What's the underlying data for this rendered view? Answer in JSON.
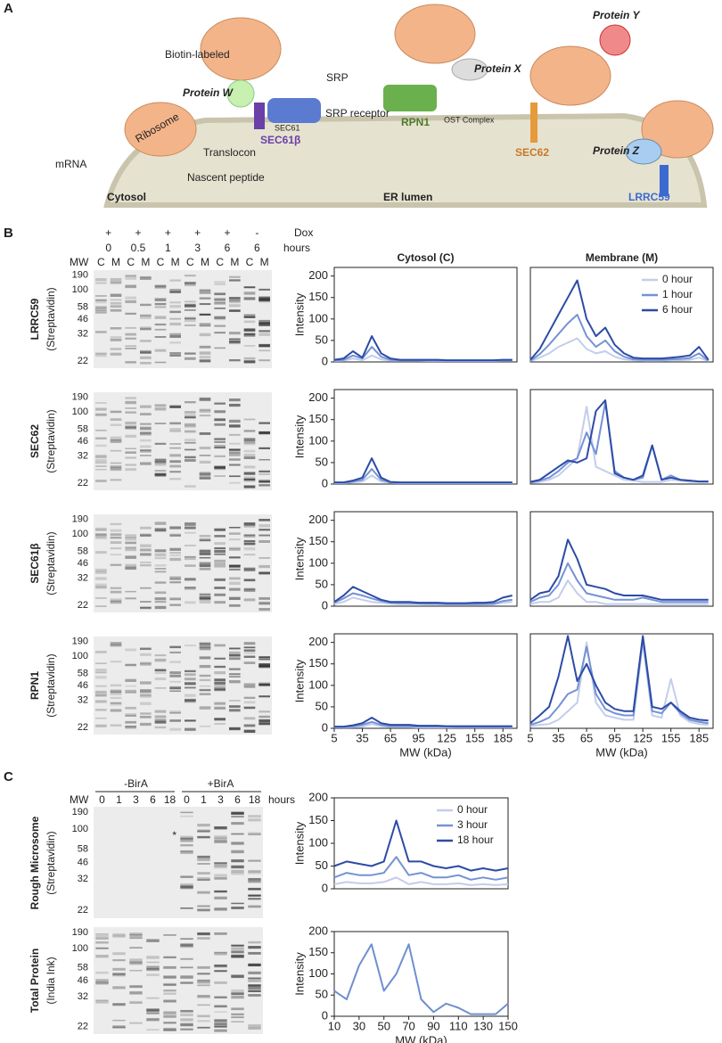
{
  "panel_a": {
    "label": "A",
    "texts": {
      "biotin": "Biotin-labeled",
      "srp": "SRP",
      "protein_w": "Protein W",
      "sec61": "SEC61",
      "sec61b": "SEC61β",
      "srp_receptor": "SRP receptor",
      "ribosome": "Ribosome",
      "translocon": "Translocon",
      "mrna": "mRNA",
      "nascent": "Nascent peptide",
      "cytosol": "Cytosol",
      "er_lumen": "ER lumen",
      "rpn1": "RPN1",
      "ost": "OST Complex",
      "protein_x": "Protein X",
      "sec62": "SEC62",
      "protein_y": "Protein Y",
      "protein_z": "Protein Z",
      "lrrc59": "LRRC59"
    }
  },
  "panel_b": {
    "label": "B",
    "dox": "Dox",
    "signs": [
      "+",
      "+",
      "+",
      "+",
      "+",
      "-"
    ],
    "hours_label": "hours",
    "hours": [
      "0",
      "0.5",
      "1",
      "3",
      "6",
      "6"
    ],
    "mw": "MW",
    "lanes": [
      "C",
      "M",
      "C",
      "M",
      "C",
      "M",
      "C",
      "M",
      "C",
      "M",
      "C",
      "M"
    ],
    "markers": [
      "190",
      "100",
      "58",
      "46",
      "32",
      "22"
    ],
    "blots": [
      {
        "name": "LRRC59",
        "stain": "(Streptavidin)"
      },
      {
        "name": "SEC62",
        "stain": "(Streptavidin)"
      },
      {
        "name": "SEC61β",
        "stain": "(Streptavidin)"
      },
      {
        "name": "RPN1",
        "stain": "(Streptavidin)"
      }
    ]
  },
  "panel_c": {
    "label": "C",
    "minus": "-BirA",
    "plus": "+BirA",
    "mw": "MW",
    "hours_label": "hours",
    "lanes": [
      "0",
      "1",
      "3",
      "6",
      "18",
      "0",
      "1",
      "3",
      "6",
      "18"
    ],
    "markers": [
      "190",
      "100",
      "58",
      "46",
      "32",
      "22"
    ],
    "star": "*",
    "blots": [
      {
        "name": "Rough Microsome",
        "stain": "(Streptavidin)"
      },
      {
        "name": "Total Protein",
        "stain": "(India Ink)"
      }
    ]
  },
  "chart_data": [
    {
      "type": "line",
      "title": "Cytosol (C)",
      "ylabel": "Intensity",
      "x": [
        5,
        15,
        25,
        35,
        45,
        55,
        65,
        75,
        85,
        95,
        105,
        115,
        125,
        135,
        145,
        155,
        165,
        175,
        185,
        195
      ],
      "xlim": [
        5,
        200
      ],
      "ylim": [
        0,
        220
      ],
      "yticks": [
        0,
        50,
        100,
        150,
        200
      ],
      "series": [
        {
          "color": "#c3cdec",
          "values": [
            2,
            3,
            8,
            4,
            15,
            6,
            3,
            3,
            3,
            3,
            2,
            2,
            2,
            2,
            2,
            2,
            2,
            2,
            3,
            3
          ]
        },
        {
          "color": "#7592d4",
          "values": [
            3,
            5,
            15,
            8,
            35,
            12,
            5,
            4,
            4,
            4,
            3,
            3,
            3,
            3,
            3,
            3,
            3,
            3,
            4,
            4
          ]
        },
        {
          "color": "#2c4ba6",
          "values": [
            5,
            8,
            25,
            10,
            60,
            20,
            8,
            5,
            5,
            5,
            5,
            5,
            4,
            4,
            4,
            4,
            4,
            4,
            5,
            5
          ]
        }
      ]
    },
    {
      "type": "line",
      "title": "Membrane (M)",
      "x": [
        5,
        15,
        25,
        35,
        45,
        55,
        65,
        75,
        85,
        95,
        105,
        115,
        125,
        135,
        145,
        155,
        165,
        175,
        185,
        195
      ],
      "xlim": [
        5,
        200
      ],
      "ylim": [
        0,
        220
      ],
      "legend": "upper right",
      "series": [
        {
          "name": "0 hour",
          "color": "#c3cdec",
          "values": [
            2,
            10,
            20,
            35,
            45,
            55,
            30,
            20,
            25,
            12,
            6,
            4,
            3,
            3,
            3,
            4,
            4,
            5,
            10,
            2
          ]
        },
        {
          "name": "1 hour",
          "color": "#7592d4",
          "values": [
            3,
            18,
            40,
            65,
            90,
            110,
            60,
            35,
            50,
            25,
            12,
            6,
            5,
            5,
            5,
            6,
            7,
            9,
            20,
            3
          ]
        },
        {
          "name": "6 hour",
          "color": "#2c4ba6",
          "values": [
            5,
            30,
            70,
            110,
            150,
            190,
            100,
            60,
            80,
            40,
            20,
            10,
            8,
            8,
            8,
            10,
            12,
            15,
            35,
            5
          ]
        }
      ]
    },
    {
      "type": "line",
      "ylabel": "Intensity",
      "x": [
        5,
        15,
        25,
        35,
        45,
        55,
        65,
        75,
        85,
        95,
        105,
        115,
        125,
        135,
        145,
        155,
        165,
        175,
        185,
        195
      ],
      "xlim": [
        5,
        200
      ],
      "ylim": [
        0,
        220
      ],
      "yticks": [
        0,
        50,
        100,
        150,
        200
      ],
      "series": [
        {
          "color": "#c3cdec",
          "values": [
            2,
            2,
            4,
            6,
            20,
            6,
            3,
            2,
            2,
            2,
            2,
            2,
            2,
            2,
            2,
            2,
            2,
            2,
            2,
            2
          ]
        },
        {
          "color": "#7592d4",
          "values": [
            3,
            3,
            6,
            10,
            35,
            10,
            4,
            3,
            3,
            3,
            3,
            3,
            3,
            3,
            3,
            3,
            3,
            3,
            3,
            3
          ]
        },
        {
          "color": "#2c4ba6",
          "values": [
            4,
            4,
            8,
            15,
            60,
            15,
            5,
            4,
            4,
            4,
            4,
            4,
            4,
            4,
            4,
            4,
            4,
            4,
            4,
            4
          ]
        }
      ]
    },
    {
      "type": "line",
      "x": [
        5,
        15,
        25,
        35,
        45,
        55,
        65,
        75,
        85,
        95,
        105,
        115,
        125,
        135,
        145,
        155,
        165,
        175,
        185,
        195
      ],
      "xlim": [
        5,
        200
      ],
      "ylim": [
        0,
        220
      ],
      "series": [
        {
          "color": "#c3cdec",
          "values": [
            3,
            5,
            10,
            20,
            40,
            60,
            180,
            40,
            30,
            20,
            10,
            8,
            5,
            5,
            5,
            10,
            8,
            5,
            5,
            5
          ]
        },
        {
          "color": "#7592d4",
          "values": [
            4,
            8,
            15,
            30,
            50,
            60,
            120,
            70,
            190,
            30,
            15,
            10,
            15,
            90,
            10,
            20,
            10,
            8,
            6,
            6
          ]
        },
        {
          "color": "#2c4ba6",
          "values": [
            5,
            10,
            25,
            40,
            55,
            50,
            60,
            170,
            195,
            25,
            15,
            10,
            20,
            90,
            10,
            15,
            10,
            8,
            6,
            6
          ]
        }
      ]
    },
    {
      "type": "line",
      "ylabel": "Intensity",
      "x": [
        5,
        15,
        25,
        35,
        45,
        55,
        65,
        75,
        85,
        95,
        105,
        115,
        125,
        135,
        145,
        155,
        165,
        175,
        185,
        195
      ],
      "xlim": [
        5,
        200
      ],
      "ylim": [
        0,
        220
      ],
      "yticks": [
        0,
        50,
        100,
        150,
        200
      ],
      "series": [
        {
          "color": "#c3cdec",
          "values": [
            5,
            10,
            20,
            15,
            10,
            8,
            6,
            5,
            5,
            5,
            4,
            4,
            4,
            4,
            4,
            4,
            4,
            4,
            8,
            10
          ]
        },
        {
          "color": "#7592d4",
          "values": [
            8,
            18,
            30,
            25,
            18,
            12,
            8,
            7,
            7,
            6,
            6,
            6,
            5,
            5,
            5,
            5,
            5,
            6,
            12,
            15
          ]
        },
        {
          "color": "#2c4ba6",
          "values": [
            10,
            25,
            45,
            35,
            25,
            15,
            10,
            10,
            10,
            8,
            8,
            8,
            7,
            7,
            7,
            8,
            8,
            10,
            20,
            25
          ]
        }
      ]
    },
    {
      "type": "line",
      "x": [
        5,
        15,
        25,
        35,
        45,
        55,
        65,
        75,
        85,
        95,
        105,
        115,
        125,
        135,
        145,
        155,
        165,
        175,
        185,
        195
      ],
      "xlim": [
        5,
        200
      ],
      "ylim": [
        0,
        220
      ],
      "series": [
        {
          "color": "#c3cdec",
          "values": [
            5,
            10,
            10,
            20,
            60,
            30,
            10,
            10,
            5,
            5,
            5,
            5,
            5,
            5,
            5,
            5,
            5,
            5,
            5,
            5
          ]
        },
        {
          "color": "#7592d4",
          "values": [
            10,
            20,
            25,
            50,
            100,
            60,
            30,
            25,
            20,
            15,
            15,
            15,
            20,
            15,
            10,
            10,
            10,
            10,
            10,
            10
          ]
        },
        {
          "color": "#2c4ba6",
          "values": [
            15,
            30,
            35,
            70,
            155,
            110,
            50,
            45,
            40,
            30,
            25,
            25,
            25,
            20,
            15,
            15,
            15,
            15,
            15,
            15
          ]
        }
      ]
    },
    {
      "type": "line",
      "ylabel": "Intensity",
      "xlabel": "MW (kDa)",
      "x": [
        5,
        15,
        25,
        35,
        45,
        55,
        65,
        75,
        85,
        95,
        105,
        115,
        125,
        135,
        145,
        155,
        165,
        175,
        185,
        195
      ],
      "xlim": [
        5,
        200
      ],
      "ylim": [
        0,
        220
      ],
      "yticks": [
        0,
        50,
        100,
        150,
        200
      ],
      "xticks": [
        5,
        35,
        65,
        95,
        125,
        155,
        185
      ],
      "series": [
        {
          "color": "#c3cdec",
          "values": [
            2,
            2,
            3,
            4,
            10,
            5,
            3,
            3,
            3,
            2,
            2,
            2,
            2,
            2,
            2,
            2,
            2,
            2,
            2,
            2
          ]
        },
        {
          "color": "#7592d4",
          "values": [
            3,
            3,
            5,
            8,
            15,
            8,
            5,
            5,
            5,
            4,
            4,
            4,
            4,
            3,
            3,
            3,
            3,
            3,
            3,
            3
          ]
        },
        {
          "color": "#2c4ba6",
          "values": [
            4,
            4,
            7,
            12,
            25,
            12,
            8,
            8,
            8,
            6,
            6,
            6,
            5,
            5,
            5,
            5,
            5,
            5,
            5,
            5
          ]
        }
      ]
    },
    {
      "type": "line",
      "xlabel": "MW (kDa)",
      "x": [
        5,
        15,
        25,
        35,
        45,
        55,
        65,
        75,
        85,
        95,
        105,
        115,
        125,
        135,
        145,
        155,
        165,
        175,
        185,
        195
      ],
      "xlim": [
        5,
        200
      ],
      "ylim": [
        0,
        220
      ],
      "xticks": [
        5,
        35,
        65,
        95,
        125,
        155,
        185
      ],
      "series": [
        {
          "color": "#c3cdec",
          "values": [
            5,
            8,
            10,
            20,
            40,
            60,
            200,
            60,
            30,
            25,
            20,
            20,
            200,
            30,
            25,
            115,
            30,
            15,
            10,
            8
          ]
        },
        {
          "color": "#7592d4",
          "values": [
            8,
            15,
            25,
            50,
            80,
            90,
            190,
            80,
            45,
            35,
            30,
            30,
            210,
            40,
            35,
            60,
            35,
            20,
            15,
            12
          ]
        },
        {
          "color": "#2c4ba6",
          "values": [
            12,
            30,
            50,
            120,
            215,
            110,
            150,
            100,
            60,
            45,
            40,
            40,
            215,
            50,
            45,
            60,
            40,
            25,
            20,
            18
          ]
        }
      ]
    },
    {
      "type": "line",
      "ylabel": "Intensity",
      "x": [
        10,
        20,
        30,
        40,
        50,
        60,
        70,
        80,
        90,
        100,
        110,
        120,
        130,
        140,
        150
      ],
      "xlim": [
        10,
        150
      ],
      "ylim": [
        0,
        200
      ],
      "yticks": [
        0,
        50,
        100,
        150,
        200
      ],
      "legend": "upper right",
      "series": [
        {
          "name": "0 hour",
          "color": "#c3cdec",
          "values": [
            10,
            15,
            12,
            12,
            15,
            25,
            10,
            15,
            10,
            10,
            12,
            8,
            10,
            8,
            10
          ]
        },
        {
          "name": "3 hour",
          "color": "#7592d4",
          "values": [
            25,
            35,
            30,
            30,
            35,
            70,
            30,
            35,
            25,
            25,
            30,
            20,
            25,
            20,
            25
          ]
        },
        {
          "name": "18 hour",
          "color": "#2c4ba6",
          "values": [
            50,
            60,
            55,
            50,
            60,
            150,
            60,
            60,
            50,
            45,
            50,
            40,
            45,
            40,
            45
          ]
        }
      ]
    },
    {
      "type": "line",
      "ylabel": "Intensity",
      "xlabel": "MW (kDa)",
      "x": [
        10,
        20,
        30,
        40,
        50,
        60,
        70,
        80,
        90,
        100,
        110,
        120,
        130,
        140,
        150
      ],
      "xlim": [
        10,
        150
      ],
      "ylim": [
        0,
        200
      ],
      "yticks": [
        0,
        50,
        100,
        150,
        200
      ],
      "xticks": [
        10,
        30,
        50,
        70,
        90,
        110,
        130,
        150
      ],
      "series": [
        {
          "color": "#6f8fd0",
          "values": [
            60,
            40,
            120,
            170,
            60,
            100,
            170,
            40,
            10,
            30,
            20,
            5,
            5,
            5,
            30
          ]
        }
      ]
    }
  ]
}
